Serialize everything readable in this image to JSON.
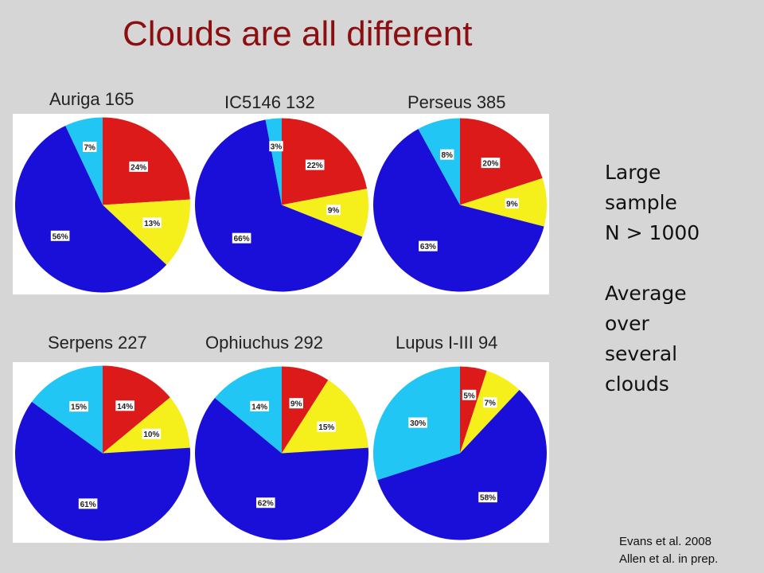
{
  "slide": {
    "title": "Clouds are all different",
    "side_text": [
      "Large",
      "sample",
      "N > 1000",
      "",
      "Average",
      "over",
      "several",
      "clouds"
    ],
    "references": [
      "Evans et al. 2008",
      "Allen et al. in prep."
    ]
  },
  "colors": {
    "red": "#dd1a1a",
    "yellow": "#f5ef1c",
    "blue": "#1a0fd8",
    "cyan": "#22c6f5"
  },
  "chart_data": [
    {
      "type": "pie",
      "title": "Auriga 165",
      "slices": [
        {
          "color": "red",
          "value": 24,
          "label": "24%"
        },
        {
          "color": "yellow",
          "value": 13,
          "label": "13%"
        },
        {
          "color": "blue",
          "value": 56,
          "label": "56%"
        },
        {
          "color": "cyan",
          "value": 7,
          "label": "7%"
        }
      ]
    },
    {
      "type": "pie",
      "title": "IC5146 132",
      "slices": [
        {
          "color": "red",
          "value": 22,
          "label": "22%"
        },
        {
          "color": "yellow",
          "value": 9,
          "label": "9%"
        },
        {
          "color": "blue",
          "value": 66,
          "label": "66%"
        },
        {
          "color": "cyan",
          "value": 3,
          "label": "3%"
        }
      ]
    },
    {
      "type": "pie",
      "title": "Perseus 385",
      "slices": [
        {
          "color": "red",
          "value": 20,
          "label": "20%"
        },
        {
          "color": "yellow",
          "value": 9,
          "label": "9%"
        },
        {
          "color": "blue",
          "value": 63,
          "label": "63%"
        },
        {
          "color": "cyan",
          "value": 8,
          "label": "8%"
        }
      ]
    },
    {
      "type": "pie",
      "title": "Serpens 227",
      "slices": [
        {
          "color": "red",
          "value": 14,
          "label": "14%"
        },
        {
          "color": "yellow",
          "value": 10,
          "label": "10%"
        },
        {
          "color": "blue",
          "value": 61,
          "label": "61%"
        },
        {
          "color": "cyan",
          "value": 15,
          "label": "15%"
        }
      ]
    },
    {
      "type": "pie",
      "title": "Ophiuchus 292",
      "slices": [
        {
          "color": "red",
          "value": 9,
          "label": "9%"
        },
        {
          "color": "yellow",
          "value": 15,
          "label": "15%"
        },
        {
          "color": "blue",
          "value": 62,
          "label": "62%"
        },
        {
          "color": "cyan",
          "value": 14,
          "label": "14%"
        }
      ]
    },
    {
      "type": "pie",
      "title": "Lupus I-III 94",
      "slices": [
        {
          "color": "red",
          "value": 5,
          "label": "5%"
        },
        {
          "color": "yellow",
          "value": 7,
          "label": "7%"
        },
        {
          "color": "blue",
          "value": 58,
          "label": "58%"
        },
        {
          "color": "cyan",
          "value": 30,
          "label": "30%"
        }
      ]
    }
  ]
}
